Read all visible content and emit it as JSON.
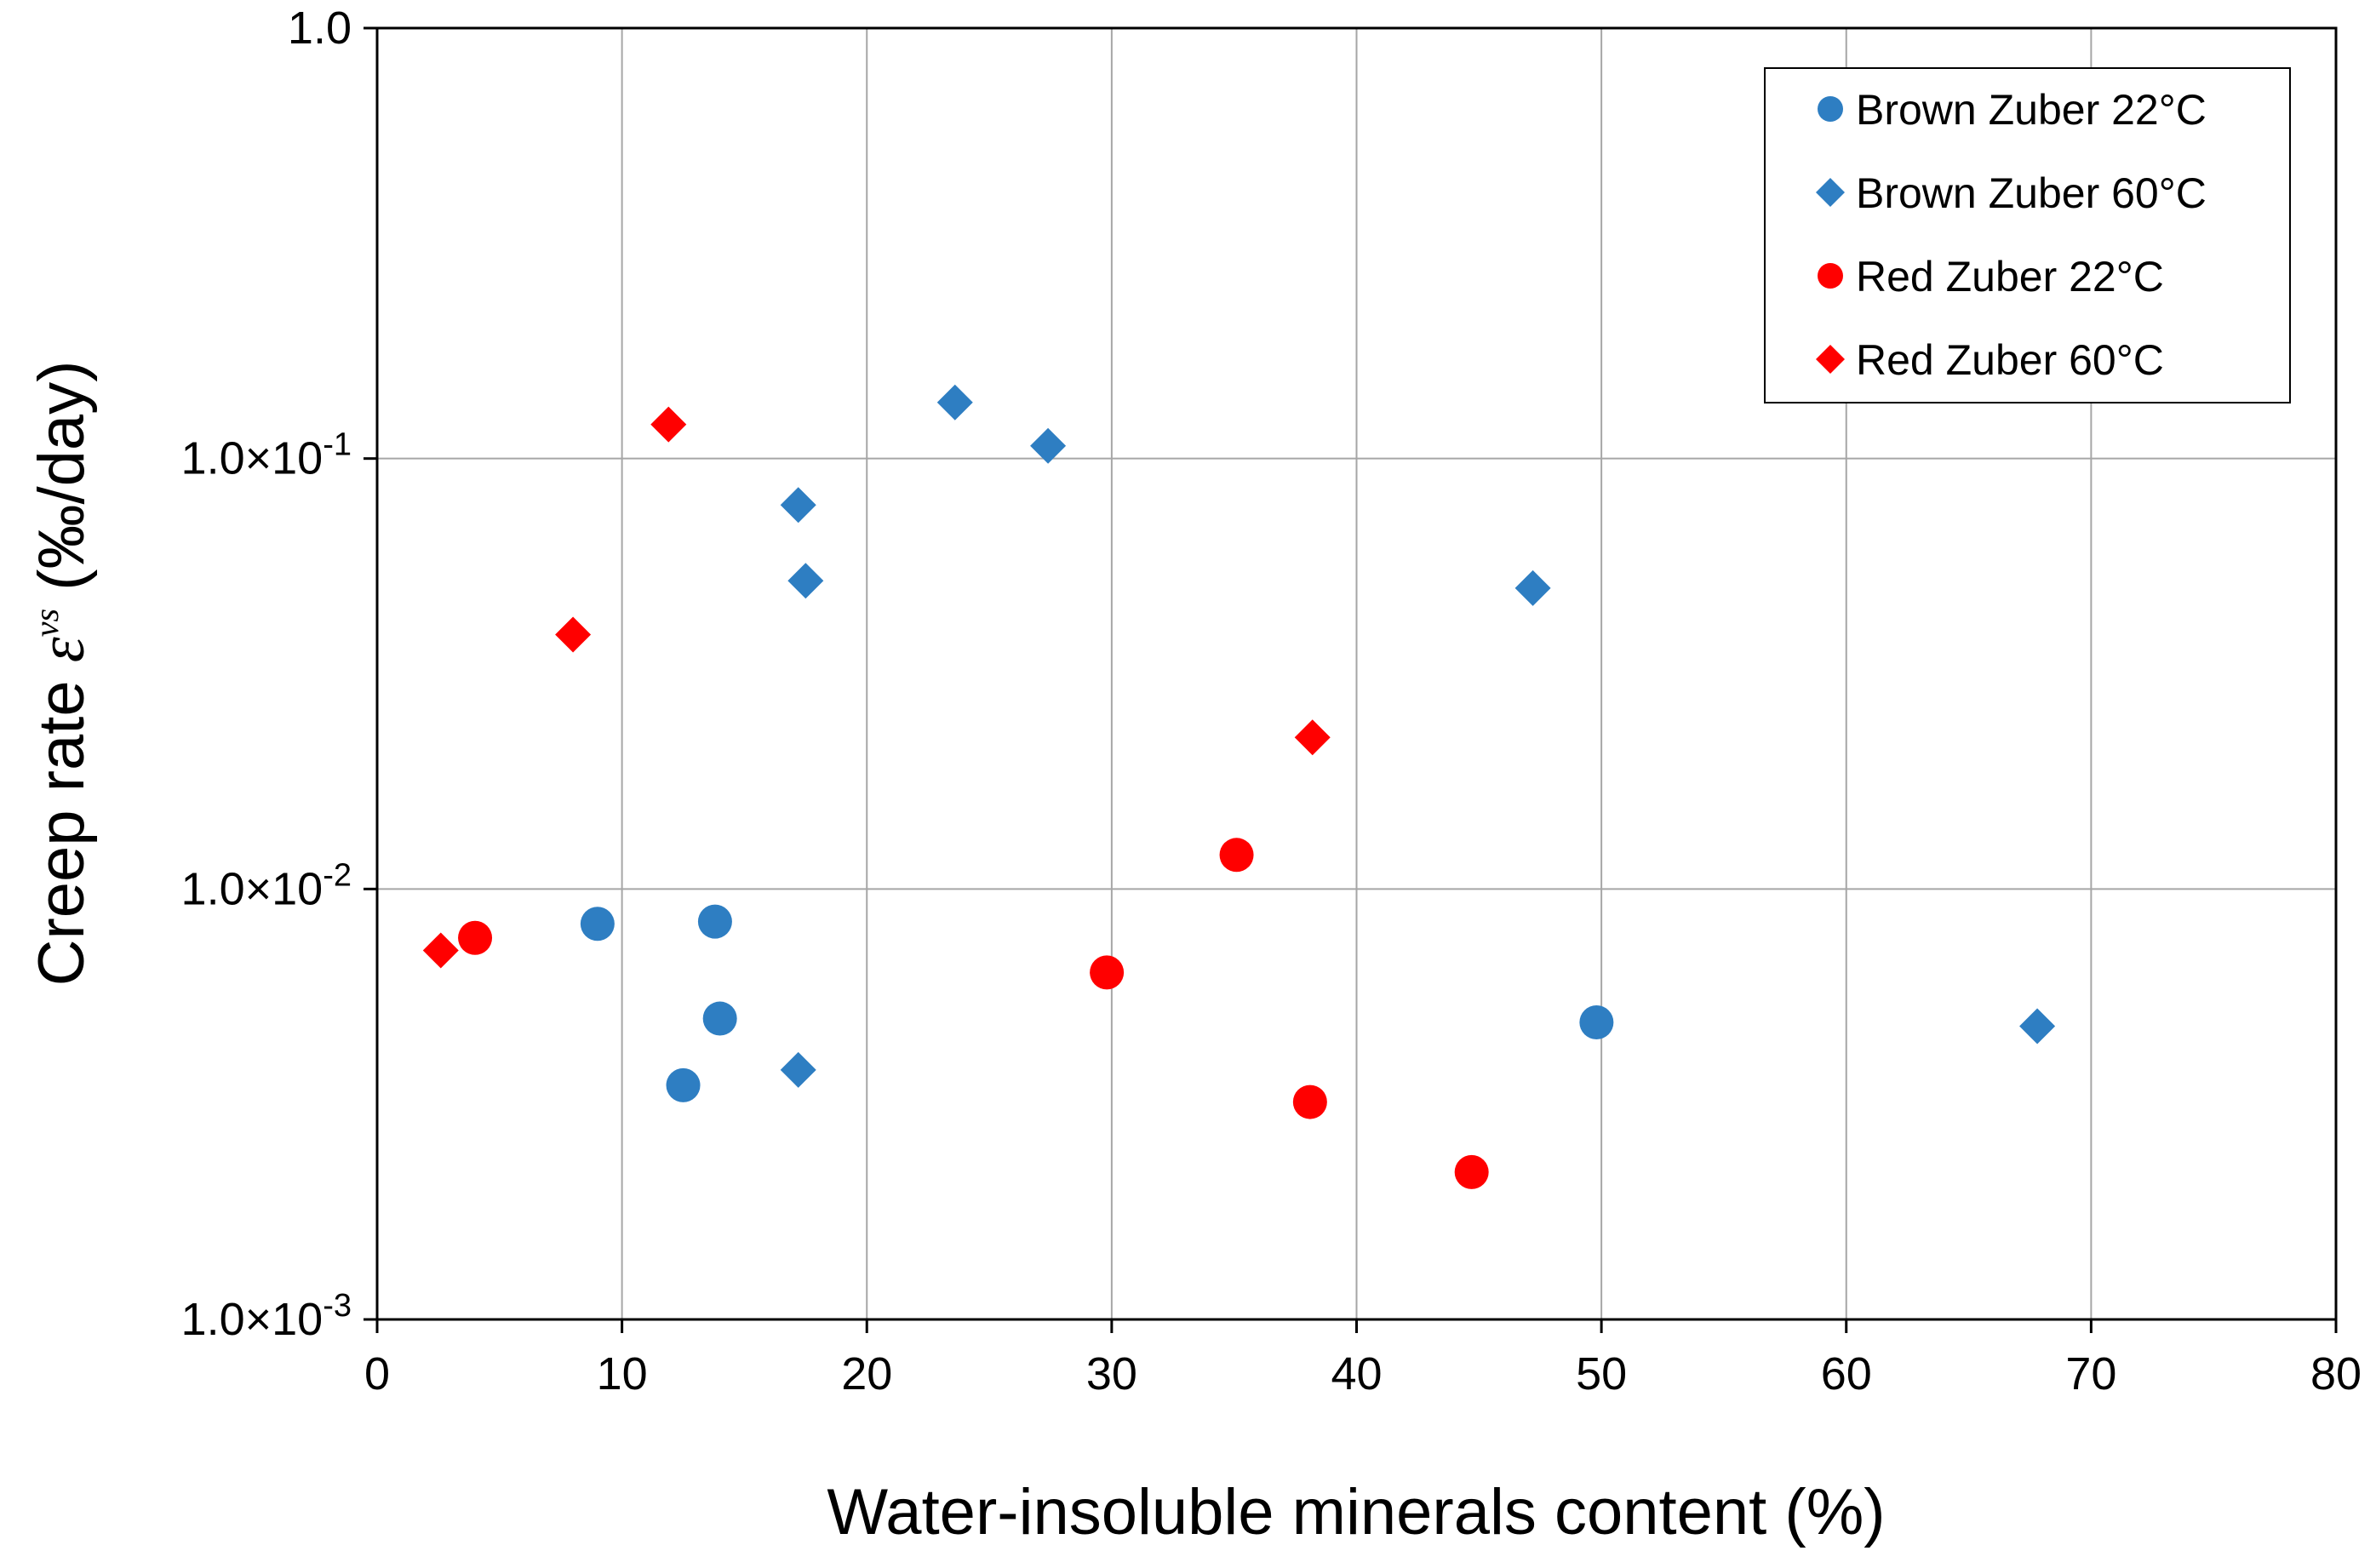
{
  "chart_data": {
    "type": "scatter",
    "title": "",
    "xlabel": "Water-insoluble minerals content (%)",
    "ylabel": {
      "prefix": "Creep rate ",
      "symbol": "ε",
      "superscript": "vs",
      "suffix": " (‰/day)"
    },
    "x_scale": "linear",
    "y_scale": "log",
    "xlim": [
      0,
      80
    ],
    "ylim": [
      0.001,
      1.0
    ],
    "x_ticks": [
      0,
      10,
      20,
      30,
      40,
      50,
      60,
      70,
      80
    ],
    "x_tick_labels": [
      "0",
      "10",
      "20",
      "30",
      "40",
      "50",
      "60",
      "70",
      "80"
    ],
    "y_ticks": [
      0.001,
      0.01,
      0.1,
      1.0
    ],
    "y_tick_labels": [
      {
        "mantissa": "1.0",
        "times": "×",
        "base": "10",
        "exp": "-3"
      },
      {
        "mantissa": "1.0",
        "times": "×",
        "base": "10",
        "exp": "-2"
      },
      {
        "mantissa": "1.0",
        "times": "×",
        "base": "10",
        "exp": "-1"
      },
      {
        "mantissa": "1.0",
        "times": "",
        "base": "",
        "exp": ""
      }
    ],
    "grid": true,
    "legend_position": "top-right",
    "series": [
      {
        "name": "Brown Zuber 22°C",
        "marker": "circle",
        "color": "#2E7EC2",
        "points": [
          {
            "x": 9.0,
            "y": 0.0083
          },
          {
            "x": 13.8,
            "y": 0.0084
          },
          {
            "x": 14.0,
            "y": 0.005
          },
          {
            "x": 12.5,
            "y": 0.0035
          },
          {
            "x": 49.8,
            "y": 0.0049
          }
        ]
      },
      {
        "name": "Brown Zuber 60°C",
        "marker": "diamond",
        "color": "#2E7EC2",
        "points": [
          {
            "x": 23.6,
            "y": 0.135
          },
          {
            "x": 27.4,
            "y": 0.107
          },
          {
            "x": 17.2,
            "y": 0.078
          },
          {
            "x": 17.5,
            "y": 0.052
          },
          {
            "x": 47.2,
            "y": 0.05
          },
          {
            "x": 17.2,
            "y": 0.0038
          },
          {
            "x": 67.8,
            "y": 0.0048
          }
        ]
      },
      {
        "name": "Red Zuber 22°C",
        "marker": "circle",
        "color": "#FF0000",
        "points": [
          {
            "x": 4.0,
            "y": 0.0077
          },
          {
            "x": 29.8,
            "y": 0.0064
          },
          {
            "x": 35.1,
            "y": 0.012
          },
          {
            "x": 38.1,
            "y": 0.0032
          },
          {
            "x": 44.7,
            "y": 0.0022
          }
        ]
      },
      {
        "name": "Red Zuber 60°C",
        "marker": "diamond",
        "color": "#FF0000",
        "points": [
          {
            "x": 2.6,
            "y": 0.0072
          },
          {
            "x": 8.0,
            "y": 0.039
          },
          {
            "x": 11.9,
            "y": 0.12
          },
          {
            "x": 38.2,
            "y": 0.0225
          }
        ]
      }
    ]
  }
}
